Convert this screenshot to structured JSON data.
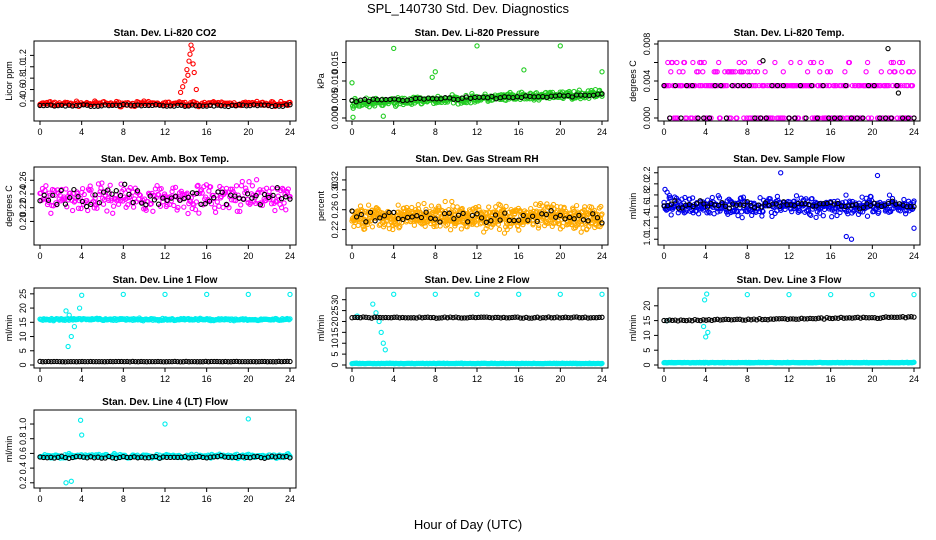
{
  "figure": {
    "title": "SPL_140730  Std. Dev. Diagnostics",
    "xlabel": "Hour of Day (UTC)"
  },
  "colors": {
    "red": "#ff0000",
    "green": "#22cc22",
    "magenta": "#ff00ff",
    "orange": "#ffaa00",
    "blue": "#0000ee",
    "cyan": "#00eeee",
    "black": "#000000"
  },
  "chart_data": [
    {
      "type": "scatter",
      "title": "Stan. Dev. Li-820 CO2",
      "ylabel": "Licor ppm",
      "xlim": [
        0,
        24
      ],
      "ylim": [
        0.1,
        1.4
      ],
      "xticks": [
        0,
        4,
        8,
        12,
        16,
        20,
        24
      ],
      "yticks": [
        0.4,
        0.6,
        0.8,
        1.0,
        1.2
      ],
      "ytick_labels": [
        "0.4",
        "0.6",
        "0.8",
        "1.0",
        "1.2"
      ],
      "series": [
        {
          "color": "red",
          "pattern": "band",
          "level": 0.35,
          "spread": 0.06,
          "density": 220,
          "extra": [
            [
              13.9,
              0.75
            ],
            [
              14.1,
              0.95
            ],
            [
              14.3,
              1.1
            ],
            [
              14.4,
              1.22
            ],
            [
              14.6,
              1.31
            ],
            [
              14.5,
              1.38
            ],
            [
              14.7,
              1.05
            ],
            [
              14.2,
              0.85
            ],
            [
              13.7,
              0.65
            ],
            [
              14.8,
              0.9
            ],
            [
              15.0,
              0.6
            ],
            [
              13.5,
              0.55
            ]
          ]
        },
        {
          "color": "black",
          "pattern": "band",
          "level": 0.32,
          "spread": 0.025,
          "density": 70
        }
      ]
    },
    {
      "type": "scatter",
      "title": "Stan. Dev. Li-820 Pressure",
      "ylabel": "kPa",
      "xlim": [
        0,
        24
      ],
      "ylim": [
        0.0,
        0.02
      ],
      "xticks": [
        0,
        4,
        8,
        12,
        16,
        20,
        24
      ],
      "yticks": [
        0.0,
        0.005,
        0.01,
        0.015
      ],
      "ytick_labels": [
        "0.000",
        "0.005",
        "0.010",
        "0.015"
      ],
      "series": [
        {
          "color": "green",
          "pattern": "trend",
          "start": 0.004,
          "end": 0.0065,
          "spread": 0.0016,
          "density": 420,
          "extra": [
            [
              0.0,
              0.0095
            ],
            [
              0.1,
              0.0002
            ],
            [
              4.0,
              0.0188
            ],
            [
              8.0,
              0.0125
            ],
            [
              12.0,
              0.0195
            ],
            [
              16.5,
              0.013
            ],
            [
              20.0,
              0.0195
            ],
            [
              24.0,
              0.0125
            ],
            [
              3.0,
              0.0005
            ],
            [
              7.7,
              0.011
            ]
          ]
        },
        {
          "color": "black",
          "pattern": "trend",
          "start": 0.0048,
          "end": 0.0062,
          "spread": 0.0006,
          "density": 60
        }
      ]
    },
    {
      "type": "scatter",
      "title": "Stan. Dev. Li-820 Temp.",
      "ylabel": "degrees C",
      "xlim": [
        0,
        24
      ],
      "ylim": [
        0.0,
        0.008
      ],
      "xticks": [
        0,
        4,
        8,
        12,
        16,
        20,
        24
      ],
      "yticks": [
        0.0,
        0.002,
        0.004,
        0.006,
        0.008
      ],
      "ytick_labels": [
        "0.000",
        "",
        "0.004",
        "",
        "0.008"
      ],
      "series": [
        {
          "color": "magenta",
          "pattern": "levels",
          "levels": [
            0.0,
            0.0035,
            0.005,
            0.006
          ],
          "weights": [
            0.35,
            0.45,
            0.12,
            0.08
          ],
          "density": 330
        },
        {
          "color": "black",
          "pattern": "levels",
          "levels": [
            0.0,
            0.0035
          ],
          "weights": [
            0.6,
            0.4
          ],
          "density": 45,
          "extra": [
            [
              9.5,
              0.0062
            ],
            [
              21.5,
              0.0075
            ],
            [
              22.5,
              0.0027
            ]
          ]
        }
      ]
    },
    {
      "type": "scatter",
      "title": "Stan. Dev. Amb. Box Temp.",
      "ylabel": "degrees C",
      "xlim": [
        0,
        24
      ],
      "ylim": [
        0.17,
        0.275
      ],
      "xticks": [
        0,
        4,
        8,
        12,
        16,
        20,
        24
      ],
      "yticks": [
        0.2,
        0.22,
        0.24,
        0.26
      ],
      "ytick_labels": [
        "0.20",
        "0.22",
        "0.24",
        "0.26"
      ],
      "series": [
        {
          "color": "magenta",
          "pattern": "band",
          "level": 0.235,
          "spread": 0.03,
          "density": 300
        },
        {
          "color": "black",
          "pattern": "band",
          "level": 0.235,
          "spread": 0.022,
          "density": 60
        }
      ]
    },
    {
      "type": "scatter",
      "title": "Stan. Dev. Gas Stream RH",
      "ylabel": "percent",
      "xlim": [
        0,
        24
      ],
      "ylim": [
        0.195,
        0.34
      ],
      "xticks": [
        0,
        4,
        8,
        12,
        16,
        20,
        24
      ],
      "yticks": [
        0.22,
        0.26,
        0.3,
        0.32
      ],
      "ytick_labels": [
        "0.22",
        "0.26",
        "0.30",
        "0.32"
      ],
      "series": [
        {
          "color": "orange",
          "pattern": "band",
          "level": 0.245,
          "spread": 0.035,
          "density": 650
        },
        {
          "color": "black",
          "pattern": "band",
          "level": 0.245,
          "spread": 0.02,
          "density": 55
        }
      ]
    },
    {
      "type": "scatter",
      "title": "Stan. Dev. Sample Flow",
      "ylabel": "ml/min",
      "xlim": [
        0,
        24
      ],
      "ylim": [
        0.95,
        2.25
      ],
      "xticks": [
        0,
        4,
        8,
        12,
        16,
        20,
        24
      ],
      "yticks": [
        1.0,
        1.2,
        1.4,
        1.6,
        1.8,
        2.0,
        2.2
      ],
      "ytick_labels": [
        "1.0",
        "1.2",
        "1.4",
        "1.6",
        "1.8",
        "2.0",
        "2.2"
      ],
      "series": [
        {
          "color": "blue",
          "pattern": "band",
          "level": 1.6,
          "spread": 0.25,
          "density": 420,
          "extra": [
            [
              0.1,
              1.9
            ],
            [
              0.3,
              1.85
            ],
            [
              0.5,
              1.75
            ],
            [
              17.5,
              1.05
            ],
            [
              18.0,
              1.0
            ],
            [
              24.0,
              1.2
            ],
            [
              11.2,
              2.2
            ],
            [
              20.5,
              2.15
            ]
          ]
        },
        {
          "color": "black",
          "pattern": "band",
          "level": 1.62,
          "spread": 0.1,
          "density": 70
        }
      ]
    },
    {
      "type": "scatter",
      "title": "Stan. Dev. Line 1 Flow",
      "ylabel": "ml/min",
      "xlim": [
        0,
        24
      ],
      "ylim": [
        0,
        26
      ],
      "xticks": [
        0,
        4,
        8,
        12,
        16,
        20,
        24
      ],
      "yticks": [
        0,
        5,
        10,
        15,
        20,
        25
      ],
      "ytick_labels": [
        "0",
        "5",
        "10",
        "15",
        "20",
        "25"
      ],
      "series": [
        {
          "color": "cyan",
          "pattern": "band",
          "level": 16,
          "spread": 0.6,
          "density": 260,
          "extra": [
            [
              2.5,
              19
            ],
            [
              2.8,
              17.5
            ],
            [
              3.0,
              10
            ],
            [
              2.7,
              6.5
            ],
            [
              3.3,
              13.5
            ],
            [
              3.8,
              20
            ],
            [
              4.0,
              24.5
            ],
            [
              8.0,
              24.8
            ],
            [
              12.0,
              24.8
            ],
            [
              16.0,
              24.8
            ],
            [
              20.0,
              24.8
            ],
            [
              24.0,
              24.8
            ]
          ]
        },
        {
          "color": "black",
          "pattern": "band",
          "level": 1.2,
          "spread": 0.1,
          "density": 90
        }
      ]
    },
    {
      "type": "scatter",
      "title": "Stan. Dev. Line 2 Flow",
      "ylabel": "ml/min",
      "xlim": [
        0,
        24
      ],
      "ylim": [
        0,
        34
      ],
      "xticks": [
        0,
        4,
        8,
        12,
        16,
        20,
        24
      ],
      "yticks": [
        0,
        5,
        10,
        15,
        20,
        25,
        30
      ],
      "ytick_labels": [
        "0",
        "5",
        "10",
        "15",
        "20",
        "25",
        "30"
      ],
      "series": [
        {
          "color": "cyan",
          "pattern": "band",
          "level": 0.7,
          "spread": 0.15,
          "density": 260,
          "extra": [
            [
              2.0,
              28
            ],
            [
              2.3,
              24
            ],
            [
              2.6,
              20
            ],
            [
              2.8,
              15
            ],
            [
              3.0,
              10
            ],
            [
              3.2,
              7
            ],
            [
              4.0,
              32.5
            ],
            [
              8.0,
              32.5
            ],
            [
              12.0,
              32.5
            ],
            [
              16.0,
              32.5
            ],
            [
              20.0,
              32.5
            ],
            [
              24.0,
              32.5
            ],
            [
              0.5,
              22.5
            ]
          ]
        },
        {
          "color": "black",
          "pattern": "band",
          "level": 21.8,
          "spread": 0.4,
          "density": 90
        }
      ]
    },
    {
      "type": "scatter",
      "title": "Stan. Dev. Line 3 Flow",
      "ylabel": "ml/min",
      "xlim": [
        0,
        24
      ],
      "ylim": [
        0,
        25
      ],
      "xticks": [
        0,
        4,
        8,
        12,
        16,
        20,
        24
      ],
      "yticks": [
        0,
        5,
        10,
        15,
        20
      ],
      "ytick_labels": [
        "0",
        "5",
        "10",
        "15",
        "20"
      ],
      "series": [
        {
          "color": "cyan",
          "pattern": "band",
          "level": 0.8,
          "spread": 0.15,
          "density": 260,
          "extra": [
            [
              0.3,
              15
            ],
            [
              3.8,
              13
            ],
            [
              4.0,
              9.5
            ],
            [
              4.2,
              11
            ],
            [
              3.9,
              22
            ],
            [
              4.1,
              24
            ],
            [
              8.0,
              23.8
            ],
            [
              12.0,
              23.8
            ],
            [
              16.0,
              23.8
            ],
            [
              20.0,
              23.8
            ],
            [
              24.0,
              23.8
            ]
          ]
        },
        {
          "color": "black",
          "pattern": "trend",
          "start": 15.0,
          "end": 16.2,
          "spread": 0.35,
          "density": 90
        }
      ]
    },
    {
      "type": "scatter",
      "title": "Stan. Dev. Line 4 (LT) Flow",
      "ylabel": "ml/min",
      "xlim": [
        0,
        24
      ],
      "ylim": [
        0.17,
        1.15
      ],
      "xticks": [
        0,
        4,
        8,
        12,
        16,
        20,
        24
      ],
      "yticks": [
        0.2,
        0.4,
        0.6,
        0.8,
        1.0
      ],
      "ytick_labels": [
        "0.2",
        "0.4",
        "0.6",
        "0.8",
        "1.0"
      ],
      "series": [
        {
          "color": "cyan",
          "pattern": "band",
          "level": 0.565,
          "spread": 0.04,
          "density": 260,
          "extra": [
            [
              2.5,
              0.2
            ],
            [
              3.0,
              0.22
            ],
            [
              4.0,
              0.85
            ],
            [
              3.9,
              1.05
            ],
            [
              12.0,
              1.0
            ],
            [
              20.0,
              1.07
            ]
          ]
        },
        {
          "color": "black",
          "pattern": "band",
          "level": 0.55,
          "spread": 0.025,
          "density": 70
        }
      ]
    }
  ]
}
